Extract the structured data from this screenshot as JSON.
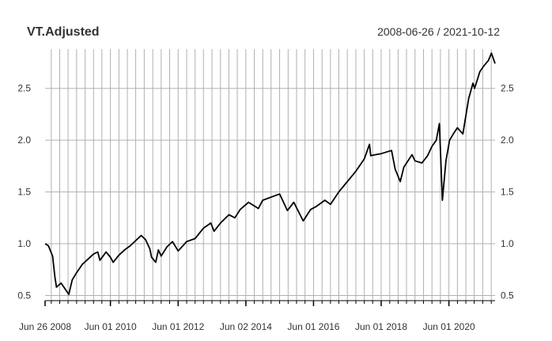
{
  "chart_data": {
    "type": "line",
    "title": "VT.Adjusted",
    "date_range": "2008-06-26 / 2021-10-12",
    "x_tick_labels": [
      "Jun 26 2008",
      "Jun 01 2010",
      "Jun 01 2012",
      "Jun 02 2014",
      "Jun 01 2016",
      "Jun 01 2018",
      "Jun 01 2020"
    ],
    "y_ticks": [
      "0.5",
      "1.0",
      "1.5",
      "2.0",
      "2.5"
    ],
    "ylim": [
      0.45,
      2.88
    ],
    "grid": true,
    "line_color": "#000000",
    "grid_color": "#b0b0b0",
    "series": [
      {
        "x": [
          "2008-06-26",
          "2008-08-01",
          "2008-09-15",
          "2008-10-10",
          "2008-10-27",
          "2008-11-20",
          "2008-12-15",
          "2009-01-15",
          "2009-03-09",
          "2009-04-15",
          "2009-06-01",
          "2009-08-01",
          "2009-10-01",
          "2009-12-01",
          "2010-01-15",
          "2010-02-08",
          "2010-04-15",
          "2010-06-01",
          "2010-07-01",
          "2010-09-01",
          "2010-11-01",
          "2011-01-01",
          "2011-04-29",
          "2011-06-15",
          "2011-08-01",
          "2011-08-19",
          "2011-10-03",
          "2011-11-01",
          "2011-12-01",
          "2012-02-01",
          "2012-04-01",
          "2012-06-01",
          "2012-09-01",
          "2012-12-01",
          "2013-03-01",
          "2013-05-20",
          "2013-06-24",
          "2013-09-01",
          "2013-12-01",
          "2014-02-03",
          "2014-04-01",
          "2014-07-01",
          "2014-10-15",
          "2014-12-01",
          "2015-04-01",
          "2015-06-01",
          "2015-08-24",
          "2015-11-01",
          "2016-02-11",
          "2016-05-01",
          "2016-07-01",
          "2016-10-01",
          "2016-12-01",
          "2017-03-01",
          "2017-06-01",
          "2017-09-01",
          "2017-12-01",
          "2018-01-26",
          "2018-02-08",
          "2018-04-01",
          "2018-06-01",
          "2018-09-21",
          "2018-10-30",
          "2018-12-24",
          "2019-02-01",
          "2019-04-30",
          "2019-06-01",
          "2019-08-15",
          "2019-10-15",
          "2019-12-01",
          "2020-01-17",
          "2020-02-19",
          "2020-03-23",
          "2020-04-30",
          "2020-06-08",
          "2020-08-01",
          "2020-09-01",
          "2020-10-30",
          "2020-12-31",
          "2021-02-15",
          "2021-03-05",
          "2021-04-30",
          "2021-06-15",
          "2021-08-01",
          "2021-09-03",
          "2021-10-04",
          "2021-10-12"
        ],
        "y": [
          1.0,
          0.98,
          0.88,
          0.68,
          0.58,
          0.6,
          0.62,
          0.58,
          0.51,
          0.65,
          0.72,
          0.8,
          0.85,
          0.9,
          0.92,
          0.84,
          0.92,
          0.87,
          0.82,
          0.89,
          0.94,
          0.98,
          1.08,
          1.04,
          0.95,
          0.87,
          0.82,
          0.94,
          0.88,
          0.97,
          1.02,
          0.93,
          1.02,
          1.05,
          1.15,
          1.2,
          1.12,
          1.2,
          1.28,
          1.25,
          1.33,
          1.4,
          1.34,
          1.42,
          1.46,
          1.48,
          1.32,
          1.4,
          1.22,
          1.33,
          1.36,
          1.42,
          1.38,
          1.5,
          1.6,
          1.7,
          1.82,
          1.96,
          1.85,
          1.86,
          1.87,
          1.9,
          1.72,
          1.6,
          1.74,
          1.86,
          1.8,
          1.78,
          1.85,
          1.94,
          2.0,
          2.16,
          1.42,
          1.8,
          2.0,
          2.08,
          2.12,
          2.06,
          2.4,
          2.55,
          2.5,
          2.66,
          2.72,
          2.77,
          2.84,
          2.76,
          2.74
        ]
      }
    ]
  }
}
